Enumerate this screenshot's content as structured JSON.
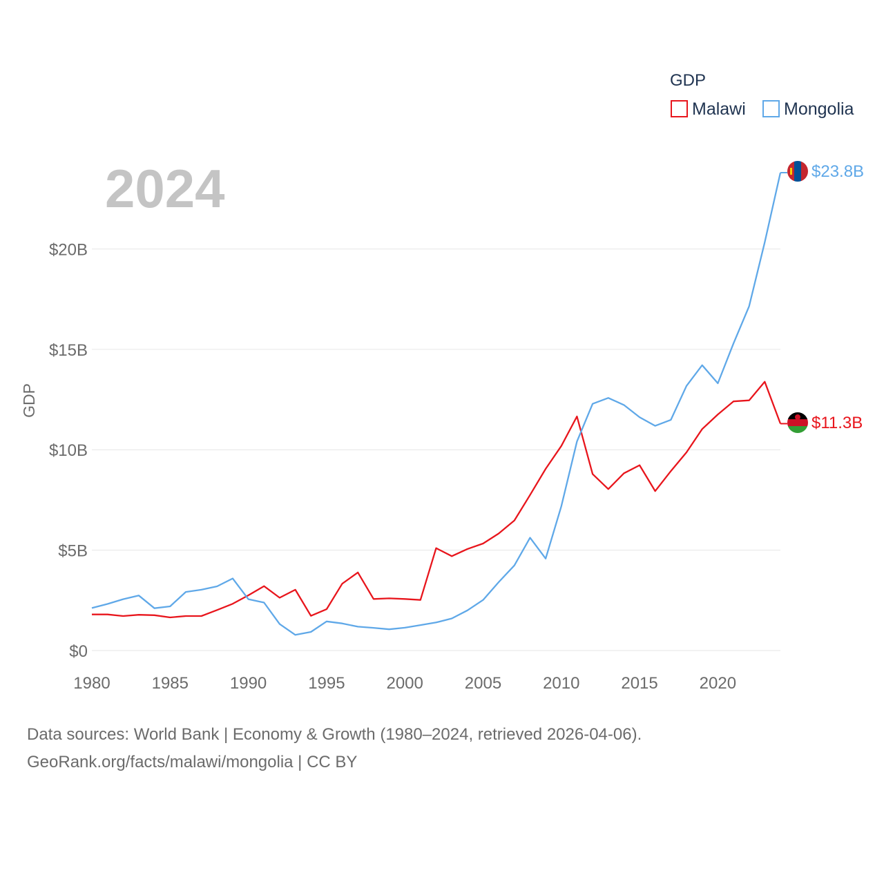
{
  "year_label": "2024",
  "legend": {
    "title": "GDP",
    "items": [
      "Malawi",
      "Mongolia"
    ]
  },
  "colors": {
    "Malawi": "#e8151c",
    "Mongolia": "#5fa8e8",
    "grid": "#e6e6e6",
    "tick": "#6b6b6b"
  },
  "chart_data": {
    "type": "line",
    "title": "",
    "xlabel": "",
    "ylabel": "GDP",
    "xlim": [
      1980,
      2024
    ],
    "ylim": [
      0,
      25
    ],
    "x_ticks": [
      1980,
      1985,
      1990,
      1995,
      2000,
      2005,
      2010,
      2015,
      2020
    ],
    "x_tick_labels": [
      "1980",
      "1985",
      "1990",
      "1995",
      "2000",
      "2005",
      "2010",
      "2015",
      "2020"
    ],
    "y_ticks": [
      0,
      5,
      10,
      15,
      20
    ],
    "y_tick_labels": [
      "$0",
      "$5B",
      "$10B",
      "$15B",
      "$20B"
    ],
    "grid": true,
    "legend_position": "top-right",
    "x": [
      1980,
      1981,
      1982,
      1983,
      1984,
      1985,
      1986,
      1987,
      1988,
      1989,
      1990,
      1991,
      1992,
      1993,
      1994,
      1995,
      1996,
      1997,
      1998,
      1999,
      2000,
      2001,
      2002,
      2003,
      2004,
      2005,
      2006,
      2007,
      2008,
      2009,
      2010,
      2011,
      2012,
      2013,
      2014,
      2015,
      2016,
      2017,
      2018,
      2019,
      2020,
      2021,
      2022,
      2023,
      2024
    ],
    "series": [
      {
        "name": "Malawi",
        "end_label": "$11.3B",
        "values": [
          1.8,
          1.8,
          1.72,
          1.78,
          1.76,
          1.65,
          1.72,
          1.72,
          2.02,
          2.33,
          2.75,
          3.21,
          2.63,
          3.03,
          1.73,
          2.06,
          3.33,
          3.89,
          2.57,
          2.6,
          2.57,
          2.52,
          5.1,
          4.7,
          5.06,
          5.33,
          5.83,
          6.48,
          7.75,
          9.05,
          10.19,
          11.66,
          8.79,
          8.04,
          8.83,
          9.23,
          7.94,
          8.94,
          9.87,
          11.03,
          11.76,
          12.41,
          12.46,
          13.39,
          11.3
        ]
      },
      {
        "name": "Mongolia",
        "end_label": "$23.8B",
        "values": [
          2.12,
          2.32,
          2.56,
          2.74,
          2.11,
          2.2,
          2.92,
          3.03,
          3.2,
          3.59,
          2.56,
          2.39,
          1.32,
          0.78,
          0.93,
          1.45,
          1.35,
          1.19,
          1.13,
          1.06,
          1.14,
          1.27,
          1.4,
          1.6,
          2.0,
          2.52,
          3.41,
          4.24,
          5.62,
          4.58,
          7.19,
          10.41,
          12.29,
          12.58,
          12.23,
          11.62,
          11.19,
          11.49,
          13.18,
          14.21,
          13.31,
          15.29,
          17.15,
          20.33,
          23.8
        ]
      }
    ]
  },
  "source_lines": [
    "Data sources: World Bank | Economy & Growth (1980–2024, retrieved 2026-04-06).",
    "GeoRank.org/facts/malawi/mongolia | CC BY"
  ]
}
